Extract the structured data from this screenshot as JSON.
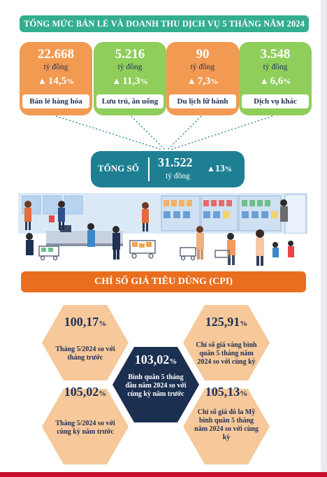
{
  "header": {
    "title": "TỔNG MỨC BÁN LẺ VÀ DOANH THU DỊCH VỤ 5 THÁNG NĂM 2024"
  },
  "retail_cards": [
    {
      "value": "22.668",
      "unit": "tỷ đồng",
      "growth": "14,5",
      "label": "Bán lẻ hàng hóa",
      "color": "#f29a52"
    },
    {
      "value": "5.216",
      "unit": "tỷ đồng",
      "growth": "11,3",
      "label": "Lưu trú, ăn uống",
      "color": "#8fce5b"
    },
    {
      "value": "90",
      "unit": "tỷ đồng",
      "growth": "7,3",
      "label": "Du lịch lữ hành",
      "color": "#f29a52"
    },
    {
      "value": "3.548",
      "unit": "tỷ đồng",
      "growth": "6,6",
      "label": "Dịch vụ khác",
      "color": "#8fce5b"
    }
  ],
  "total": {
    "label": "TỔNG SỐ",
    "value": "31.522",
    "unit": "tỷ đồng",
    "growth": "13"
  },
  "growth_symbol": "▲",
  "percent_sign": "%",
  "cpi": {
    "title": "CHỈ SỐ GIÁ TIÊU DÙNG (CPI)",
    "items": [
      {
        "value": "100,17",
        "desc": "Tháng 5/2024 so với tháng trước"
      },
      {
        "value": "125,91",
        "desc": "Chỉ số giá vàng bình quân 5 tháng năm 2024 so với cùng kỳ"
      },
      {
        "value": "103,02",
        "desc": "Bình quân 5 tháng đầu năm 2024 so với cùng kỳ năm trước"
      },
      {
        "value": "105,02",
        "desc": "Tháng 5/2024 so với cùng kỳ năm trước"
      },
      {
        "value": "105,13",
        "desc": "Chỉ số giá đô la Mỹ bình quân 5 tháng năm 2024 so với cùng kỳ"
      }
    ]
  },
  "colors": {
    "teal": "#33ae8e",
    "orange_bar": "#e96f1f",
    "navy": "#1b2f50",
    "peach": "#f6c89a",
    "total_box": "#1e7f93"
  }
}
